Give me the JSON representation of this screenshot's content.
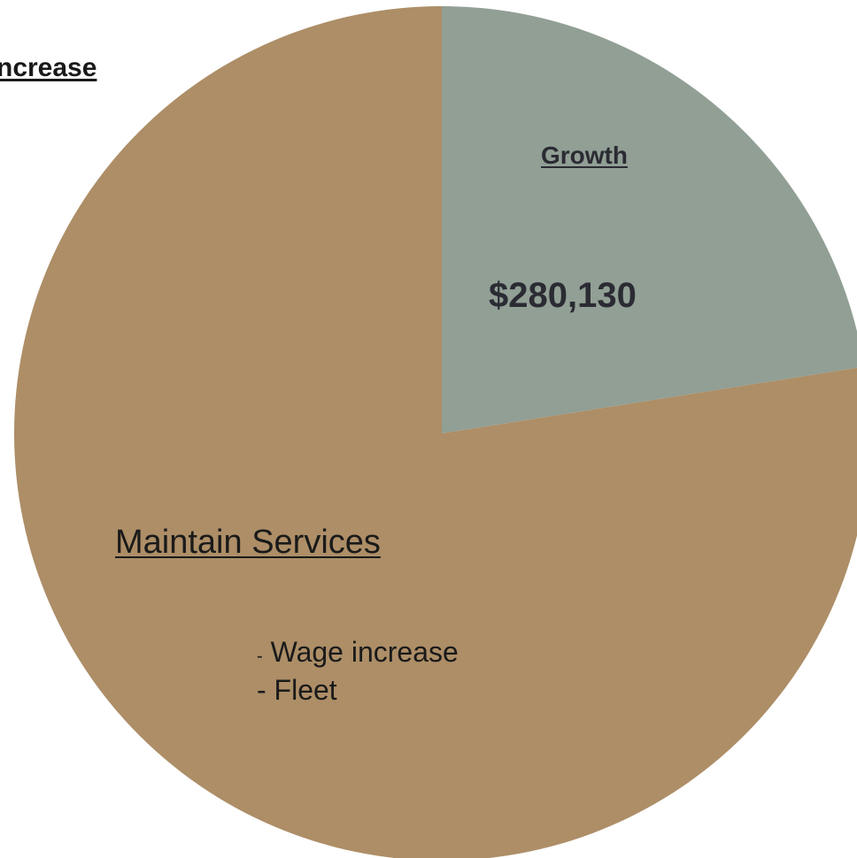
{
  "chart_data": {
    "type": "pie",
    "title": "ncrease",
    "slices": [
      {
        "key": "growth",
        "label": "Growth",
        "value_text": "$280,130",
        "value": 280130,
        "share": 0.225,
        "color": "#919f95"
      },
      {
        "key": "maintain",
        "label": "Maintain Services",
        "share": 0.775,
        "color": "#ad8e67",
        "details": [
          "Wage increase",
          "Fleet"
        ]
      }
    ],
    "start_angle_deg": 0,
    "direction": "clockwise"
  }
}
